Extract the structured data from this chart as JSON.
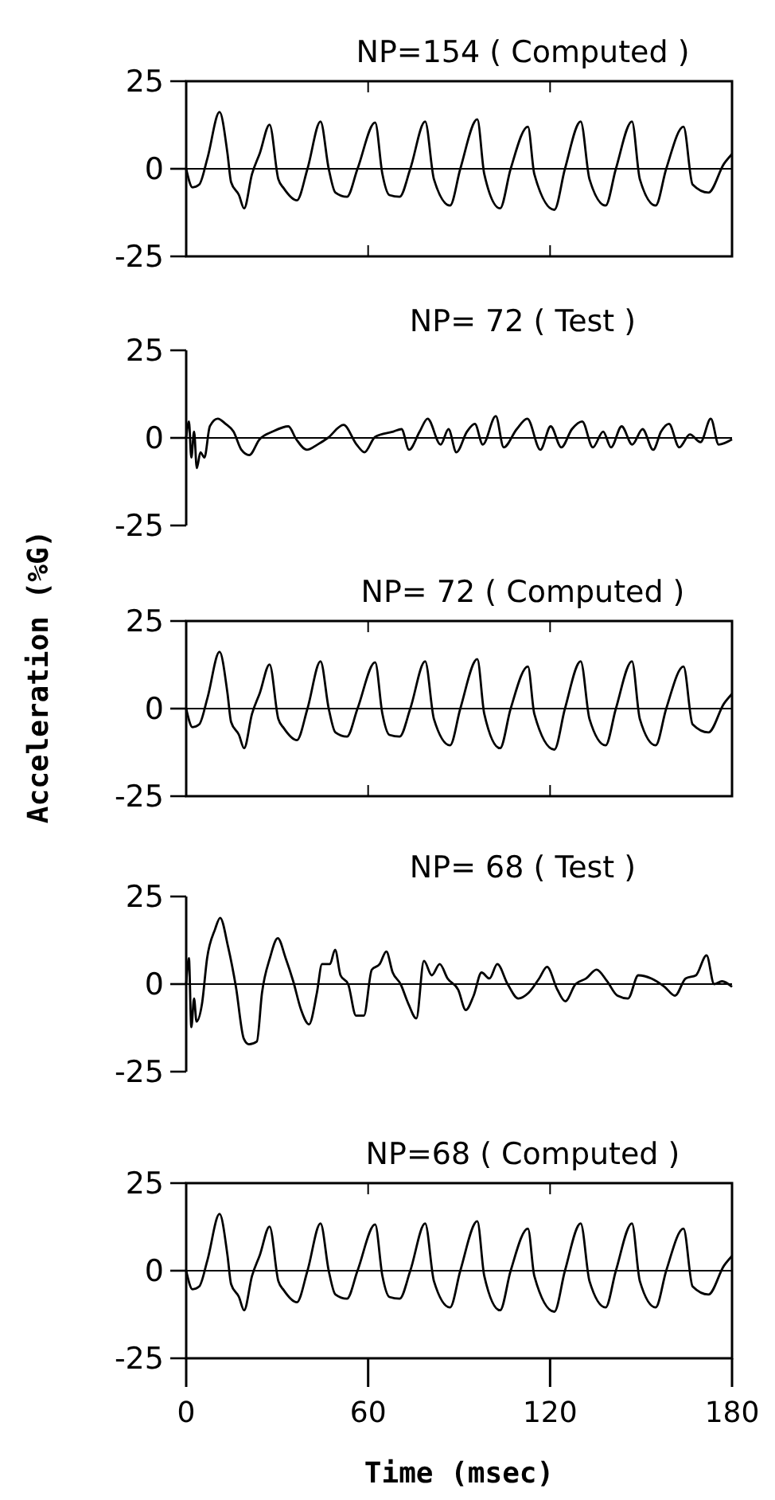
{
  "chart_data": [
    {
      "type": "line",
      "title": "NP=154 ( Computed )",
      "xlim": [
        0,
        180
      ],
      "xticks": [
        0,
        60,
        120,
        180
      ],
      "ylim": [
        -25,
        25
      ],
      "yticks": [
        -25,
        0,
        25
      ],
      "tick_labels": "y",
      "ref_lines": [
        {
          "axis": "y",
          "value": 0
        }
      ],
      "series": [
        {
          "color": "#000000",
          "x": [
            0,
            2.1,
            4.3,
            7,
            11,
            13.6,
            14.8,
            17.4,
            19.1,
            21.7,
            24.3,
            27.5,
            30.4,
            32.2,
            36.5,
            40,
            44.3,
            47,
            49.2,
            53,
            56.5,
            62.3,
            64.7,
            67,
            70.4,
            73.9,
            78.8,
            81.7,
            87,
            90.4,
            96,
            98.3,
            103.5,
            107,
            112.7,
            114.8,
            121.4,
            124.9,
            130.1,
            133,
            138.3,
            141.7,
            147,
            149.6,
            154.8,
            158.3,
            164,
            167,
            172.2,
            177.4,
            180
          ],
          "values": [
            0,
            -5.3,
            -4.5,
            3,
            16.2,
            4.5,
            -3.8,
            -7.5,
            -11.3,
            -1.5,
            4.5,
            12.6,
            -3,
            -5.6,
            -9,
            0,
            13.5,
            0,
            -6.8,
            -8,
            0,
            13.2,
            -1.5,
            -7.5,
            -8,
            0,
            13.5,
            -3,
            -10.5,
            0,
            14.1,
            -1.5,
            -11.3,
            0,
            12,
            -1.5,
            -11.7,
            0,
            13.5,
            -3,
            -10.5,
            0,
            13.5,
            -3,
            -10.5,
            0,
            12,
            -4.5,
            -6.8,
            1.5,
            4.2
          ]
        }
      ]
    },
    {
      "type": "line",
      "title": "NP= 72 ( Test )",
      "xlim": [
        0,
        180
      ],
      "ylim": [
        -25,
        25
      ],
      "yticks": [
        -25,
        0,
        25
      ],
      "tick_labels": "y",
      "ref_lines": [
        {
          "axis": "y",
          "value": 0
        }
      ],
      "series": [
        {
          "color": "#000000",
          "x": [
            0,
            0.9,
            1.7,
            2.6,
            3.5,
            4.7,
            6,
            7.8,
            10.4,
            13,
            15.6,
            18.2,
            20.8,
            24.2,
            28.5,
            33.7,
            36.3,
            39.8,
            43.3,
            46.7,
            51.9,
            56.2,
            58.8,
            62.3,
            68.3,
            71,
            73.5,
            77,
            79.6,
            83.9,
            86.5,
            89.1,
            92.6,
            95.2,
            97.8,
            102.1,
            104.7,
            109,
            112.5,
            116.8,
            120.2,
            123.7,
            127.2,
            130.6,
            134.1,
            137.5,
            140.1,
            143.6,
            147.1,
            150.5,
            154,
            156.6,
            159.2,
            162.6,
            166.1,
            169.6,
            173,
            175.6,
            180
          ],
          "values": [
            0,
            4.7,
            -5.6,
            1.8,
            -8.6,
            -4.1,
            -5.6,
            3.3,
            5.5,
            4,
            1.8,
            -3.4,
            -4.9,
            -0.4,
            1.8,
            3.3,
            -0.4,
            -3.4,
            -1.9,
            0,
            3.7,
            -1.9,
            -4.1,
            0.3,
            1.8,
            2.5,
            -3.4,
            1.8,
            5.5,
            -1.9,
            2.5,
            -4.1,
            1.8,
            4,
            -1.9,
            6.2,
            -2.7,
            2.5,
            5.5,
            -3.4,
            3.3,
            -2.7,
            2.5,
            4.7,
            -2.7,
            1.8,
            -2.7,
            3.3,
            -1.9,
            2.5,
            -3.4,
            1.8,
            4,
            -2.7,
            1,
            -1.2,
            5.5,
            -1.9,
            -0.4
          ]
        }
      ]
    },
    {
      "type": "line",
      "title": "NP= 72 ( Computed )",
      "ylabel": "Acceleration (%G)",
      "xlim": [
        0,
        180
      ],
      "xticks": [
        0,
        60,
        120,
        180
      ],
      "ylim": [
        -25,
        25
      ],
      "yticks": [
        -25,
        0,
        25
      ],
      "tick_labels": "y",
      "ref_lines": [
        {
          "axis": "y",
          "value": 0
        }
      ],
      "series": [
        {
          "color": "#000000",
          "x": [
            0,
            2.1,
            4.3,
            7,
            11,
            13.6,
            14.8,
            17.4,
            19.1,
            21.7,
            24.3,
            27.5,
            30.4,
            32.2,
            36.5,
            40,
            44.3,
            47,
            49.2,
            53,
            56.5,
            62.3,
            64.7,
            67,
            70.4,
            73.9,
            78.8,
            81.7,
            87,
            90.4,
            96,
            98.3,
            103.5,
            107,
            112.7,
            114.8,
            121.4,
            124.9,
            130.1,
            133,
            138.3,
            141.7,
            147,
            149.6,
            154.8,
            158.3,
            164,
            167,
            172.2,
            177.4,
            180
          ],
          "values": [
            0,
            -5.3,
            -4.5,
            3,
            16.2,
            4.5,
            -3.8,
            -7.5,
            -11.3,
            -1.5,
            4.5,
            12.6,
            -3,
            -5.6,
            -9,
            0,
            13.5,
            0,
            -6.8,
            -8,
            0,
            13.2,
            -1.5,
            -7.5,
            -8,
            0,
            13.5,
            -3,
            -10.5,
            0,
            14.1,
            -1.5,
            -11.3,
            0,
            12,
            -1.5,
            -11.7,
            0,
            13.5,
            -3,
            -10.5,
            0,
            13.5,
            -3,
            -10.5,
            0,
            12,
            -4.5,
            -6.8,
            1.5,
            4.2
          ]
        }
      ]
    },
    {
      "type": "line",
      "title": "NP= 68 ( Test )",
      "xlim": [
        0,
        180
      ],
      "ylim": [
        -25,
        25
      ],
      "yticks": [
        -25,
        0,
        25
      ],
      "tick_labels": "y",
      "ref_lines": [
        {
          "axis": "y",
          "value": 0
        }
      ],
      "series": [
        {
          "color": "#000000",
          "x": [
            0,
            0.9,
            1.7,
            2.6,
            3.4,
            5.2,
            6.9,
            9.5,
            11.2,
            13.8,
            16.4,
            19,
            20.7,
            23.3,
            25,
            27.6,
            30.2,
            32.8,
            35.3,
            37.9,
            40.5,
            43.1,
            44.8,
            47.4,
            49.1,
            50.9,
            53.4,
            56,
            58.6,
            61.2,
            63.8,
            66,
            68.1,
            70.7,
            73.3,
            75.9,
            78.4,
            81,
            83.6,
            86.2,
            89.7,
            92.2,
            94.8,
            97.4,
            100,
            102.6,
            106,
            109.5,
            112.9,
            116.4,
            119,
            122.4,
            125,
            128.4,
            131.9,
            135.3,
            138.8,
            142.2,
            145.7,
            149.1,
            153.4,
            157.8,
            161.2,
            164.7,
            168.1,
            171.6,
            174.1,
            176.7,
            180
          ],
          "values": [
            0,
            7.4,
            -12.3,
            -4.1,
            -10.7,
            -5.7,
            7.4,
            15.6,
            18.9,
            10.7,
            -0.8,
            -15.6,
            -17.2,
            -16.4,
            -2.5,
            7.4,
            13.1,
            7.4,
            0.8,
            -7.4,
            -11.5,
            -2.5,
            5.7,
            5.7,
            9.8,
            2.5,
            0,
            -9,
            -9,
            4.1,
            5.7,
            9.3,
            3.3,
            0,
            -5.7,
            -9.8,
            6.6,
            2.5,
            5.7,
            1.6,
            -1.6,
            -7.4,
            -3.3,
            3.3,
            1.6,
            5.7,
            0,
            -4.1,
            -2.5,
            1.6,
            4.9,
            -1.6,
            -4.9,
            0,
            1.6,
            4.1,
            0.8,
            -3.3,
            -4.1,
            2.5,
            1.6,
            -0.8,
            -3.3,
            1.6,
            2.5,
            8.2,
            0,
            0.8,
            -0.8
          ]
        }
      ]
    },
    {
      "type": "line",
      "title": "NP=68 ( Computed )",
      "xlabel": "Time (msec)",
      "xlim": [
        0,
        180
      ],
      "xticks": [
        0,
        60,
        120,
        180
      ],
      "ylim": [
        -25,
        25
      ],
      "yticks": [
        -25,
        0,
        25
      ],
      "ref_lines": [
        {
          "axis": "y",
          "value": 0
        }
      ],
      "series": [
        {
          "color": "#000000",
          "x": [
            0,
            2.1,
            4.3,
            7,
            11,
            13.6,
            14.8,
            17.4,
            19.1,
            21.7,
            24.3,
            27.5,
            30.4,
            32.2,
            36.5,
            40,
            44.3,
            47,
            49.2,
            53,
            56.5,
            62.3,
            64.7,
            67,
            70.4,
            73.9,
            78.8,
            81.7,
            87,
            90.4,
            96,
            98.3,
            103.5,
            107,
            112.7,
            114.8,
            121.4,
            124.9,
            130.1,
            133,
            138.3,
            141.7,
            147,
            149.6,
            154.8,
            158.3,
            164,
            167,
            172.2,
            177.4,
            180
          ],
          "values": [
            0,
            -5.3,
            -4.5,
            3,
            16.2,
            4.5,
            -3.8,
            -7.5,
            -11.3,
            -1.5,
            4.5,
            12.6,
            -3,
            -5.6,
            -9,
            0,
            13.5,
            0,
            -6.8,
            -8,
            0,
            13.2,
            -1.5,
            -7.5,
            -8,
            0,
            13.5,
            -3,
            -10.5,
            0,
            14.1,
            -1.5,
            -11.3,
            0,
            12,
            -1.5,
            -11.7,
            0,
            13.5,
            -3,
            -10.5,
            0,
            13.5,
            -3,
            -10.5,
            0,
            12,
            -4.5,
            -6.8,
            1.5,
            4.2
          ]
        }
      ]
    }
  ]
}
